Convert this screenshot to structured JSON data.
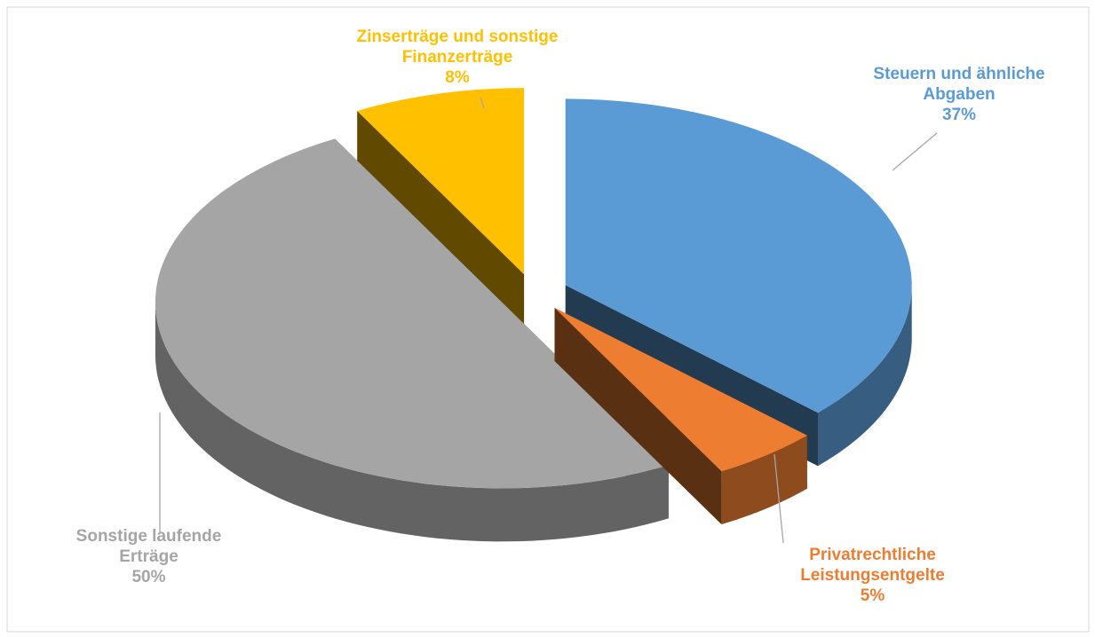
{
  "chart_data": {
    "type": "pie",
    "categories": [
      "Steuern und ähnliche Abgaben",
      "Privatrechtliche Leistungsentgelte",
      "Sonstige laufende Erträge",
      "Zinserträge und sonstige Finanzerträge"
    ],
    "values": [
      37,
      5,
      50,
      8
    ],
    "value_labels": [
      "37%",
      "5%",
      "50%",
      "8%"
    ],
    "colors": [
      "#5b9bd5",
      "#ed7d31",
      "#a5a5a5",
      "#ffc000"
    ]
  }
}
